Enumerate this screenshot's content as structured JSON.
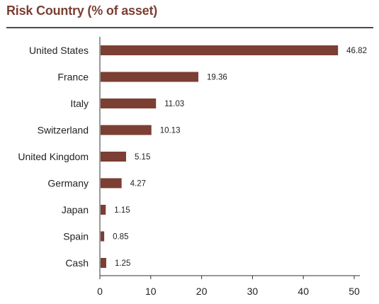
{
  "title": "Risk Country (% of asset)",
  "colors": {
    "bar": "#7b3f33",
    "title": "#7b3f33",
    "rule": "#4a4a4a",
    "axis": "#333333"
  },
  "chart_data": {
    "type": "bar",
    "orientation": "horizontal",
    "title": "Risk Country (% of asset)",
    "xlabel": "",
    "ylabel": "",
    "categories": [
      "United States",
      "France",
      "Italy",
      "Switzerland",
      "United Kingdom",
      "Germany",
      "Japan",
      "Spain",
      "Cash"
    ],
    "values": [
      46.82,
      19.36,
      11.03,
      10.13,
      5.15,
      4.27,
      1.15,
      0.85,
      1.25
    ],
    "value_labels": [
      "46.82",
      "19.36",
      "11.03",
      "10.13",
      "5.15",
      "4.27",
      "1.15",
      "0.85",
      "1.25"
    ],
    "xlim": [
      0,
      50
    ],
    "xticks": [
      0,
      10,
      20,
      30,
      40,
      50
    ],
    "xtick_labels": [
      "0",
      "10",
      "20",
      "30",
      "40",
      "50"
    ],
    "grid": false,
    "legend": "none"
  }
}
